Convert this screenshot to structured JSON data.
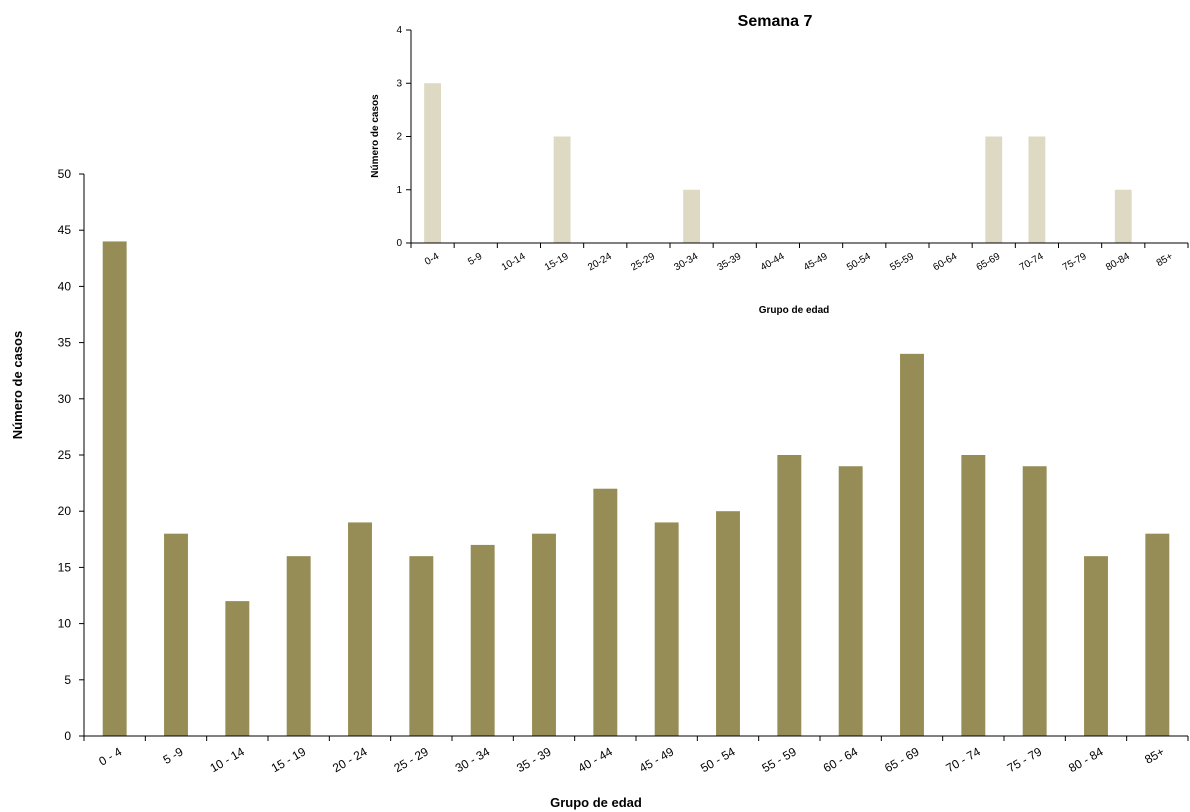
{
  "chart_data": [
    {
      "type": "bar",
      "title": "",
      "xlabel": "Grupo de edad",
      "ylabel": "Número de casos",
      "categories": [
        "0 - 4",
        "5 -9",
        "10 - 14",
        "15 - 19",
        "20 - 24",
        "25 - 29",
        "30 - 34",
        "35 - 39",
        "40 - 44",
        "45 - 49",
        "50 - 54",
        "55 - 59",
        "60 - 64",
        "65 - 69",
        "70 - 74",
        "75 - 79",
        "80 - 84",
        "85+"
      ],
      "values": [
        44,
        18,
        12,
        16,
        19,
        16,
        17,
        18,
        22,
        19,
        20,
        25,
        24,
        34,
        25,
        24,
        16,
        18
      ],
      "ylim": [
        0,
        50
      ],
      "yticks": [
        0,
        5,
        10,
        15,
        20,
        25,
        30,
        35,
        40,
        45,
        50
      ],
      "grid": false,
      "color": "#968c55"
    },
    {
      "type": "bar",
      "title": "Semana 7",
      "xlabel": "Grupo de edad",
      "ylabel": "Número de casos",
      "categories": [
        "0-4",
        "5-9",
        "10-14",
        "15-19",
        "20-24",
        "25-29",
        "30-34",
        "35-39",
        "40-44",
        "45-49",
        "50-54",
        "55-59",
        "60-64",
        "65-69",
        "70-74",
        "75-79",
        "80-84",
        "85+"
      ],
      "values": [
        3,
        0,
        0,
        2,
        0,
        0,
        1,
        0,
        0,
        0,
        0,
        0,
        0,
        2,
        2,
        0,
        1,
        0
      ],
      "ylim": [
        0,
        4
      ],
      "yticks": [
        0,
        1,
        2,
        3,
        4
      ],
      "grid": false,
      "color": "#ddd9c3"
    }
  ]
}
